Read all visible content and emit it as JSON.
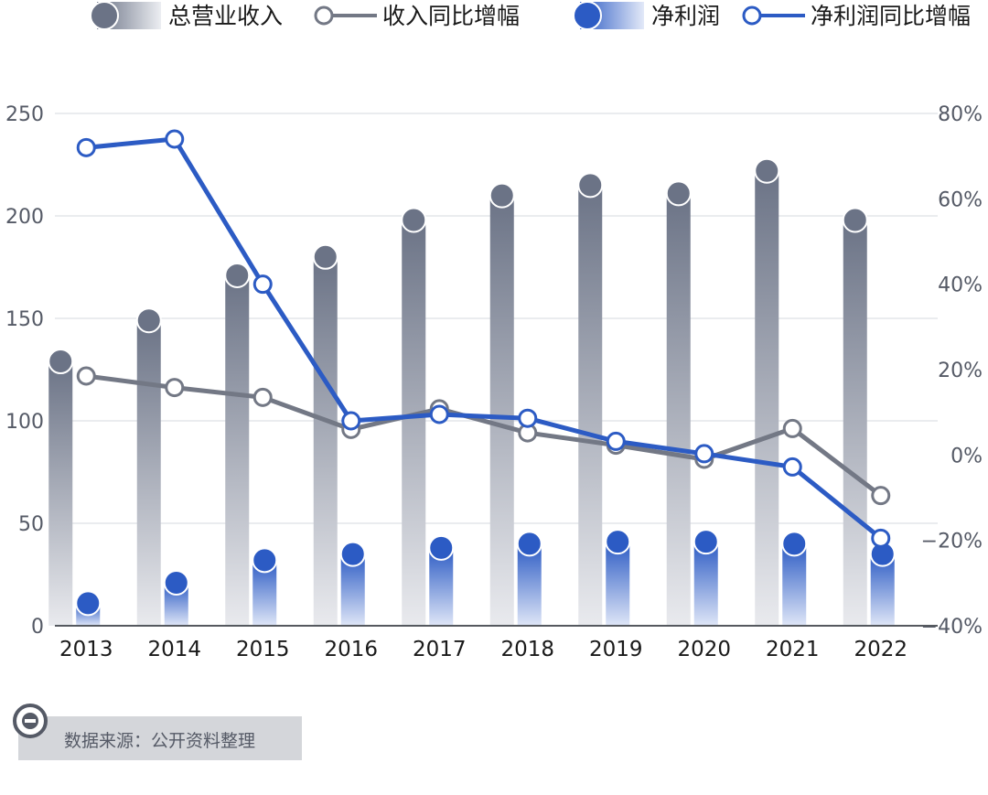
{
  "legend": [
    {
      "label": "总营业收入",
      "kind": "bar",
      "color": "#6b7386"
    },
    {
      "label": "收入同比增幅",
      "kind": "line",
      "color": "#737885"
    },
    {
      "label": "净利润",
      "kind": "bar",
      "color": "#2c5bc4"
    },
    {
      "label": "净利润同比增幅",
      "kind": "line",
      "color": "#2c5bc4"
    }
  ],
  "source": "数据来源：公开资料整理",
  "chart_data": {
    "type": "bar",
    "categories": [
      "2013",
      "2014",
      "2015",
      "2016",
      "2017",
      "2018",
      "2019",
      "2020",
      "2021",
      "2022"
    ],
    "series": [
      {
        "name": "总营业收入",
        "type": "bar",
        "axis": "left",
        "values": [
          129,
          149,
          171,
          180,
          198,
          210,
          215,
          211,
          222,
          198
        ]
      },
      {
        "name": "净利润",
        "type": "bar",
        "axis": "left",
        "values": [
          11,
          21,
          32,
          35,
          38,
          40,
          41,
          41,
          40,
          35
        ]
      },
      {
        "name": "收入同比增幅",
        "type": "line",
        "axis": "right",
        "values": [
          18.5,
          15.8,
          13.5,
          6.0,
          10.8,
          5.2,
          2.3,
          -1.0,
          6.2,
          -9.5
        ]
      },
      {
        "name": "净利润同比增幅",
        "type": "line",
        "axis": "right",
        "values": [
          72,
          74,
          40,
          8,
          9.5,
          8.6,
          3.2,
          0.3,
          -2.8,
          -19.5
        ]
      }
    ],
    "y_left": {
      "min": 0,
      "max": 250,
      "ticks": [
        "0",
        "50",
        "100",
        "150",
        "200",
        "250"
      ]
    },
    "y_right": {
      "min": -40,
      "max": 80,
      "ticks": [
        "−40%",
        "−20%",
        "0%",
        "20%",
        "40%",
        "60%",
        "80%"
      ]
    },
    "grid": true,
    "legend_position": "top"
  }
}
